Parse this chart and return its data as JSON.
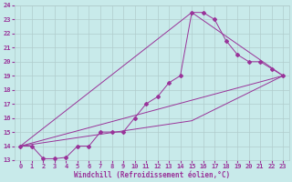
{
  "xlabel": "Windchill (Refroidissement éolien,°C)",
  "bg_color": "#c8eaea",
  "grid_color": "#b0cccc",
  "line_color": "#993399",
  "marker": "D",
  "marker_size": 2.0,
  "xlim": [
    -0.5,
    23.5
  ],
  "ylim": [
    13,
    24
  ],
  "xticks": [
    0,
    1,
    2,
    3,
    4,
    5,
    6,
    7,
    8,
    9,
    10,
    11,
    12,
    13,
    14,
    15,
    16,
    17,
    18,
    19,
    20,
    21,
    22,
    23
  ],
  "yticks": [
    13,
    14,
    15,
    16,
    17,
    18,
    19,
    20,
    21,
    22,
    23,
    24
  ],
  "line1_x": [
    0,
    1,
    2,
    3,
    4,
    5,
    6,
    7,
    8,
    9,
    10,
    11,
    12,
    13,
    14,
    15,
    16,
    17,
    18,
    19,
    20,
    21,
    22,
    23
  ],
  "line1_y": [
    14,
    14,
    13.1,
    13.1,
    13.2,
    14,
    14,
    15,
    15,
    15,
    16,
    17,
    17.5,
    18.5,
    19,
    23.5,
    23.5,
    23,
    21.5,
    20.5,
    20,
    20,
    19.5,
    19
  ],
  "line2_x": [
    0,
    23
  ],
  "line2_y": [
    14,
    19
  ],
  "line3_x": [
    0,
    15,
    23
  ],
  "line3_y": [
    14,
    23.5,
    19
  ],
  "line4_x": [
    0,
    15,
    23
  ],
  "line4_y": [
    14,
    15.8,
    19
  ],
  "tick_fontsize": 5.0,
  "xlabel_fontsize": 5.5,
  "linewidth": 0.7
}
